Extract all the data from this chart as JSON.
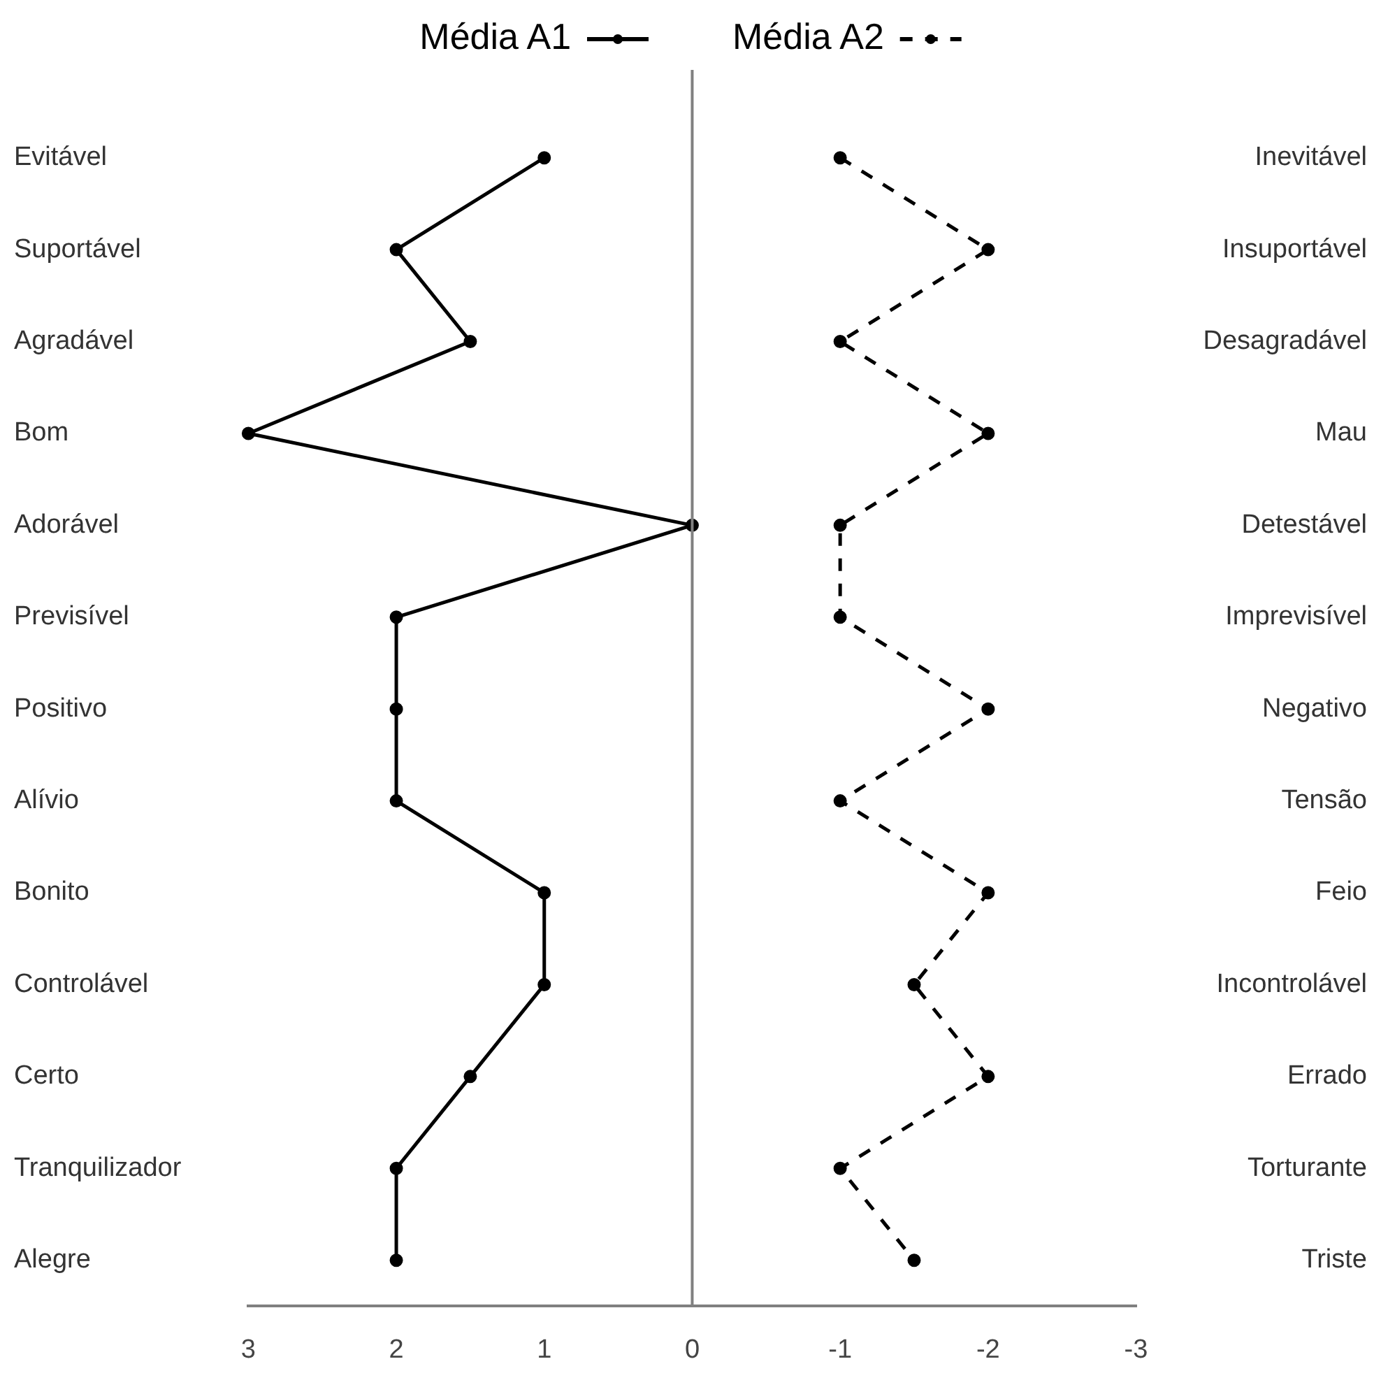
{
  "chart_data": {
    "type": "line",
    "orientation": "horizontal",
    "categories": [
      "Evitável",
      "Suportável",
      "Agradável",
      "Bom",
      "Adorável",
      "Previsível",
      "Positivo",
      "Alívio",
      "Bonito",
      "Controlável",
      "Certo",
      "Tranquilizador",
      "Alegre"
    ],
    "y2_categories": [
      "Inevitável",
      "Insuportável",
      "Desagradável",
      "Mau",
      "Detestável",
      "Imprevisível",
      "Negativo",
      "Tensão",
      "Feio",
      "Incontrolável",
      "Errado",
      "Torturante",
      "Triste"
    ],
    "series": [
      {
        "name": "Média A1",
        "color": "#000000",
        "line_style": "solid",
        "values": [
          1,
          2,
          1.5,
          3,
          0,
          2,
          2,
          2,
          1,
          1,
          1.5,
          2,
          2
        ]
      },
      {
        "name": "Média A2",
        "color": "#000000",
        "line_style": "dashed",
        "values": [
          -1,
          -2,
          -1,
          -2,
          -1,
          -1,
          -2,
          -1,
          -2,
          -1.5,
          -2,
          -1,
          -1.5
        ]
      }
    ],
    "xlim": [
      3,
      -3
    ],
    "xticks": [
      3,
      2,
      1,
      0,
      -1,
      -2,
      -3
    ],
    "ref_lines": [
      {
        "axis": "x",
        "value": 0,
        "color": "#808080"
      }
    ],
    "marker": "circle",
    "grid": false,
    "legend": "top"
  }
}
